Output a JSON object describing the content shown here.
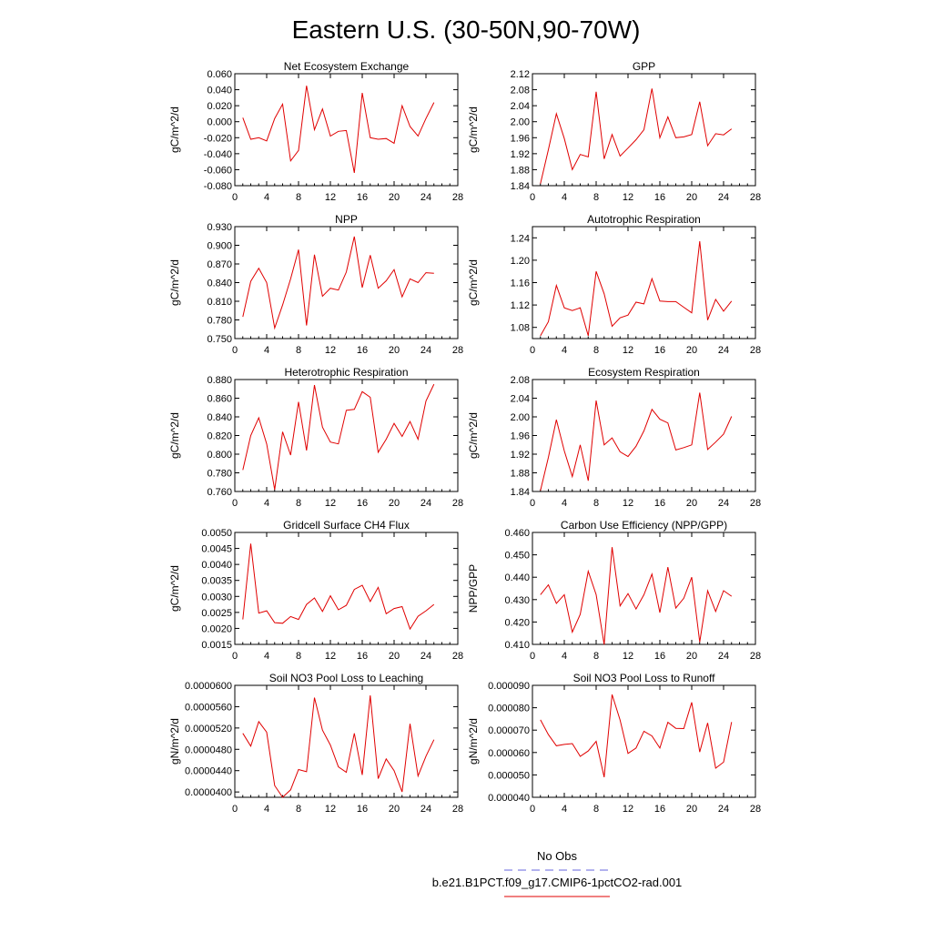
{
  "title": "Eastern U.S. (30-50N,90-70W)",
  "legend": {
    "obs_label": "No Obs",
    "obs_color": "#6666dd",
    "model_label": "b.e21.B1PCT.f09_g17.CMIP6-1pctCO2-rad.001",
    "model_color": "#e00000"
  },
  "chart_data": [
    {
      "type": "line",
      "title": "Net Ecosystem Exchange",
      "ylabel": "gC/m^2/d",
      "xlim": [
        0,
        28
      ],
      "xticks": [
        "0",
        "4",
        "8",
        "12",
        "16",
        "20",
        "24",
        "28"
      ],
      "ylim": [
        -0.08,
        0.06
      ],
      "yticks": [
        "-0.080",
        "-0.060",
        "-0.040",
        "-0.020",
        "0.000",
        "0.020",
        "0.040",
        "0.060"
      ],
      "series": [
        {
          "x": [
            1,
            2,
            3,
            4,
            5,
            6,
            7,
            8,
            9,
            10,
            11,
            12,
            13,
            14,
            15,
            16,
            17,
            18,
            19,
            20,
            21,
            22,
            23,
            24,
            25
          ],
          "values": [
            0.005,
            -0.022,
            -0.02,
            -0.024,
            0.004,
            0.022,
            -0.049,
            -0.036,
            0.045,
            -0.01,
            0.016,
            -0.018,
            -0.012,
            -0.011,
            -0.064,
            0.036,
            -0.02,
            -0.022,
            -0.021,
            -0.027,
            0.02,
            -0.006,
            -0.018,
            0.004,
            0.024
          ]
        }
      ]
    },
    {
      "type": "line",
      "title": "GPP",
      "ylabel": "gC/m^2/d",
      "xlim": [
        0,
        28
      ],
      "xticks": [
        "0",
        "4",
        "8",
        "12",
        "16",
        "20",
        "24",
        "28"
      ],
      "ylim": [
        1.84,
        2.12
      ],
      "yticks": [
        "1.84",
        "1.88",
        "1.92",
        "1.96",
        "2.00",
        "2.04",
        "2.08",
        "2.12"
      ],
      "series": [
        {
          "x": [
            1,
            2,
            3,
            4,
            5,
            6,
            7,
            8,
            9,
            10,
            11,
            12,
            13,
            14,
            15,
            16,
            17,
            18,
            19,
            20,
            21,
            22,
            23,
            24,
            25
          ],
          "values": [
            1.845,
            1.93,
            2.02,
            1.958,
            1.88,
            1.918,
            1.912,
            2.075,
            1.907,
            1.968,
            1.914,
            1.934,
            1.955,
            1.98,
            2.083,
            1.96,
            2.012,
            1.96,
            1.962,
            1.968,
            2.05,
            1.94,
            1.97,
            1.967,
            1.982
          ]
        }
      ]
    },
    {
      "type": "line",
      "title": "NPP",
      "ylabel": "gC/m^2/d",
      "xlim": [
        0,
        28
      ],
      "xticks": [
        "0",
        "4",
        "8",
        "12",
        "16",
        "20",
        "24",
        "28"
      ],
      "ylim": [
        0.75,
        0.93
      ],
      "yticks": [
        "0.750",
        "0.780",
        "0.810",
        "0.840",
        "0.870",
        "0.900",
        "0.930"
      ],
      "series": [
        {
          "x": [
            1,
            2,
            3,
            4,
            5,
            6,
            7,
            8,
            9,
            10,
            11,
            12,
            13,
            14,
            15,
            16,
            17,
            18,
            19,
            20,
            21,
            22,
            23,
            24,
            25
          ],
          "values": [
            0.785,
            0.842,
            0.863,
            0.84,
            0.767,
            0.804,
            0.846,
            0.893,
            0.771,
            0.885,
            0.818,
            0.831,
            0.828,
            0.857,
            0.914,
            0.832,
            0.884,
            0.831,
            0.843,
            0.861,
            0.817,
            0.846,
            0.84,
            0.856,
            0.855
          ]
        }
      ]
    },
    {
      "type": "line",
      "title": "Autotrophic Respiration",
      "ylabel": "gC/m^2/d",
      "xlim": [
        0,
        28
      ],
      "xticks": [
        "0",
        "4",
        "8",
        "12",
        "16",
        "20",
        "24",
        "28"
      ],
      "ylim": [
        1.06,
        1.26
      ],
      "yticks": [
        "1.08",
        "1.12",
        "1.16",
        "1.20",
        "1.24"
      ],
      "series": [
        {
          "x": [
            1,
            2,
            3,
            4,
            5,
            6,
            7,
            8,
            9,
            10,
            11,
            12,
            13,
            14,
            15,
            16,
            17,
            18,
            19,
            20,
            21,
            22,
            23,
            24,
            25
          ],
          "values": [
            1.065,
            1.09,
            1.155,
            1.115,
            1.11,
            1.115,
            1.065,
            1.18,
            1.14,
            1.082,
            1.097,
            1.102,
            1.125,
            1.122,
            1.167,
            1.127,
            1.126,
            1.126,
            1.116,
            1.106,
            1.234,
            1.093,
            1.13,
            1.109,
            1.127
          ]
        }
      ]
    },
    {
      "type": "line",
      "title": "Heterotrophic Respiration",
      "ylabel": "gC/m^2/d",
      "xlim": [
        0,
        28
      ],
      "xticks": [
        "0",
        "4",
        "8",
        "12",
        "16",
        "20",
        "24",
        "28"
      ],
      "ylim": [
        0.76,
        0.88
      ],
      "yticks": [
        "0.760",
        "0.780",
        "0.800",
        "0.820",
        "0.840",
        "0.860",
        "0.880"
      ],
      "series": [
        {
          "x": [
            1,
            2,
            3,
            4,
            5,
            6,
            7,
            8,
            9,
            10,
            11,
            12,
            13,
            14,
            15,
            16,
            17,
            18,
            19,
            20,
            21,
            22,
            23,
            24,
            25
          ],
          "values": [
            0.783,
            0.82,
            0.839,
            0.811,
            0.762,
            0.824,
            0.799,
            0.856,
            0.804,
            0.874,
            0.829,
            0.813,
            0.811,
            0.847,
            0.848,
            0.867,
            0.861,
            0.802,
            0.816,
            0.833,
            0.819,
            0.835,
            0.816,
            0.857,
            0.875
          ]
        }
      ]
    },
    {
      "type": "line",
      "title": "Ecosystem Respiration",
      "ylabel": "gC/m^2/d",
      "xlim": [
        0,
        28
      ],
      "xticks": [
        "0",
        "4",
        "8",
        "12",
        "16",
        "20",
        "24",
        "28"
      ],
      "ylim": [
        1.84,
        2.08
      ],
      "yticks": [
        "1.84",
        "1.88",
        "1.92",
        "1.96",
        "2.00",
        "2.04",
        "2.08"
      ],
      "series": [
        {
          "x": [
            1,
            2,
            3,
            4,
            5,
            6,
            7,
            8,
            9,
            10,
            11,
            12,
            13,
            14,
            15,
            16,
            17,
            18,
            19,
            20,
            21,
            22,
            23,
            24,
            25
          ],
          "values": [
            1.842,
            1.913,
            1.994,
            1.927,
            1.872,
            1.94,
            1.863,
            2.035,
            1.94,
            1.955,
            1.925,
            1.915,
            1.937,
            1.97,
            2.016,
            1.995,
            1.987,
            1.929,
            1.934,
            1.94,
            2.052,
            1.93,
            1.946,
            1.963,
            2.001
          ]
        }
      ]
    },
    {
      "type": "line",
      "title": "Gridcell Surface CH4 Flux",
      "ylabel": "gC/m^2/d",
      "xlim": [
        0,
        28
      ],
      "xticks": [
        "0",
        "4",
        "8",
        "12",
        "16",
        "20",
        "24",
        "28"
      ],
      "ylim": [
        0.0015,
        0.005
      ],
      "yticks": [
        "0.0015",
        "0.0020",
        "0.0025",
        "0.0030",
        "0.0035",
        "0.0040",
        "0.0045",
        "0.0050"
      ],
      "series": [
        {
          "x": [
            1,
            2,
            3,
            4,
            5,
            6,
            7,
            8,
            9,
            10,
            11,
            12,
            13,
            14,
            15,
            16,
            17,
            18,
            19,
            20,
            21,
            22,
            23,
            24,
            25
          ],
          "values": [
            0.00228,
            0.00465,
            0.00248,
            0.00255,
            0.00218,
            0.00216,
            0.00237,
            0.00228,
            0.00275,
            0.00295,
            0.00253,
            0.00302,
            0.00258,
            0.00272,
            0.00322,
            0.00335,
            0.00284,
            0.00328,
            0.00246,
            0.00262,
            0.00268,
            0.00198,
            0.00238,
            0.00255,
            0.00275
          ]
        }
      ]
    },
    {
      "type": "line",
      "title": "Carbon Use Efficiency (NPP/GPP)",
      "ylabel": "NPP/GPP",
      "xlim": [
        0,
        28
      ],
      "xticks": [
        "0",
        "4",
        "8",
        "12",
        "16",
        "20",
        "24",
        "28"
      ],
      "ylim": [
        0.41,
        0.46
      ],
      "yticks": [
        "0.410",
        "0.420",
        "0.430",
        "0.440",
        "0.450",
        "0.460"
      ],
      "series": [
        {
          "x": [
            1,
            2,
            3,
            4,
            5,
            6,
            7,
            8,
            9,
            10,
            11,
            12,
            13,
            14,
            15,
            16,
            17,
            18,
            19,
            20,
            21,
            22,
            23,
            24,
            25
          ],
          "values": [
            0.4322,
            0.4366,
            0.4283,
            0.4322,
            0.4155,
            0.4234,
            0.4427,
            0.4322,
            0.4099,
            0.4534,
            0.4272,
            0.4327,
            0.4258,
            0.4322,
            0.4414,
            0.4242,
            0.4445,
            0.4262,
            0.4306,
            0.44,
            0.411,
            0.434,
            0.4247,
            0.434,
            0.4315
          ]
        }
      ]
    },
    {
      "type": "line",
      "title": "Soil NO3 Pool Loss to Leaching",
      "ylabel": "gN/m^2/d",
      "xlim": [
        0,
        28
      ],
      "xticks": [
        "0",
        "4",
        "8",
        "12",
        "16",
        "20",
        "24",
        "28"
      ],
      "ylim": [
        3.9e-05,
        6e-05
      ],
      "yticks": [
        "0.0000400",
        "0.0000440",
        "0.0000480",
        "0.0000520",
        "0.0000560",
        "0.0000600"
      ],
      "series": [
        {
          "x": [
            1,
            2,
            3,
            4,
            5,
            6,
            7,
            8,
            9,
            10,
            11,
            12,
            13,
            14,
            15,
            16,
            17,
            18,
            19,
            20,
            21,
            22,
            23,
            24,
            25
          ],
          "values": [
            5.1e-05,
            4.86e-05,
            5.32e-05,
            5.12e-05,
            4.12e-05,
            3.9e-05,
            4.04e-05,
            4.42e-05,
            4.38e-05,
            5.77e-05,
            5.16e-05,
            4.88e-05,
            4.47e-05,
            4.37e-05,
            5.1e-05,
            4.32e-05,
            5.81e-05,
            4.25e-05,
            4.62e-05,
            4.4e-05,
            4e-05,
            5.28e-05,
            4.3e-05,
            4.67e-05,
            4.98e-05
          ]
        }
      ]
    },
    {
      "type": "line",
      "title": "Soil NO3 Pool Loss to Runoff",
      "ylabel": "gN/m^2/d",
      "xlim": [
        0,
        28
      ],
      "xticks": [
        "0",
        "4",
        "8",
        "12",
        "16",
        "20",
        "24",
        "28"
      ],
      "ylim": [
        4e-05,
        9e-05
      ],
      "yticks": [
        "0.000040",
        "0.000050",
        "0.000060",
        "0.000070",
        "0.000080",
        "0.000090"
      ],
      "series": [
        {
          "x": [
            1,
            2,
            3,
            4,
            5,
            6,
            7,
            8,
            9,
            10,
            11,
            12,
            13,
            14,
            15,
            16,
            17,
            18,
            19,
            20,
            21,
            22,
            23,
            24,
            25
          ],
          "values": [
            7.46e-05,
            6.8e-05,
            6.3e-05,
            6.36e-05,
            6.4e-05,
            5.83e-05,
            6.07e-05,
            6.5e-05,
            4.9e-05,
            8.59e-05,
            7.45e-05,
            5.96e-05,
            6.2e-05,
            6.95e-05,
            6.74e-05,
            6.2e-05,
            7.35e-05,
            7.08e-05,
            7.07e-05,
            8.24e-05,
            6.02e-05,
            7.32e-05,
            5.3e-05,
            5.57e-05,
            7.36e-05
          ]
        }
      ]
    }
  ]
}
